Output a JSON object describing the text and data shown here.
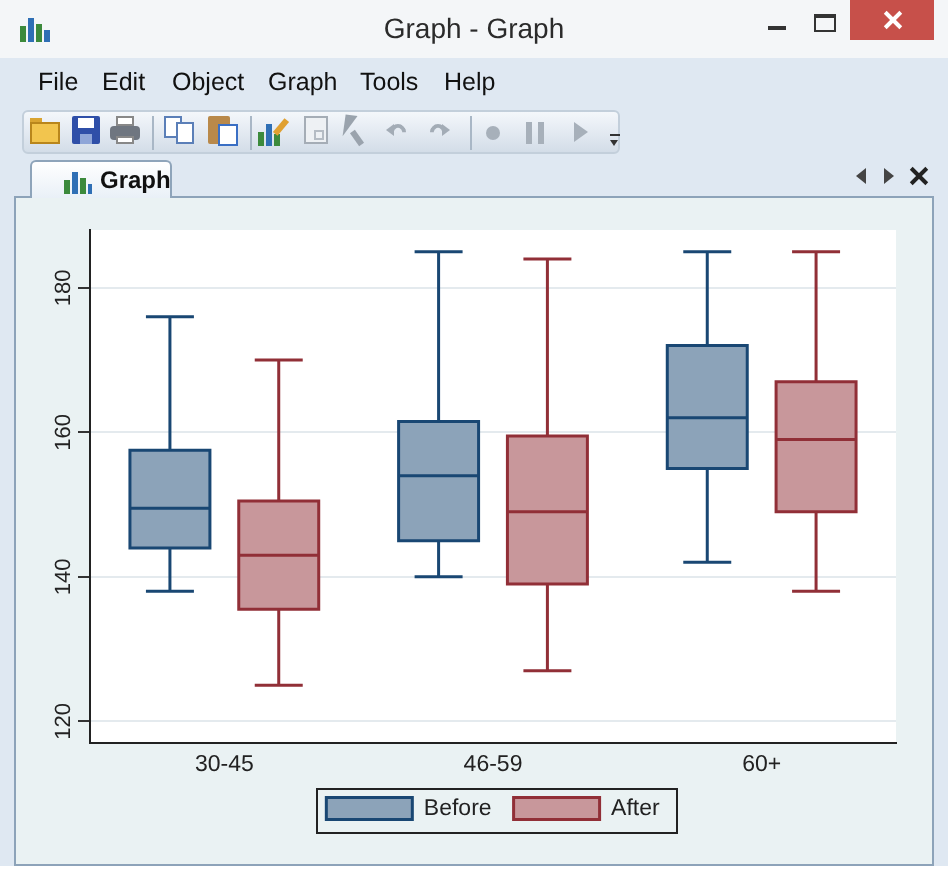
{
  "chart_data": {
    "type": "box",
    "categories": [
      "30-45",
      "46-59",
      "60+"
    ],
    "series": [
      {
        "name": "Before",
        "color": "#8ca3b9",
        "boxes": [
          {
            "low": 138,
            "q1": 144,
            "median": 149.5,
            "q3": 157.5,
            "high": 176
          },
          {
            "low": 140,
            "q1": 145,
            "median": 154,
            "q3": 161.5,
            "high": 185
          },
          {
            "low": 142,
            "q1": 155,
            "median": 162,
            "q3": 172,
            "high": 185
          }
        ]
      },
      {
        "name": "After",
        "color": "#c8979b",
        "boxes": [
          {
            "low": 125,
            "q1": 135.5,
            "median": 143,
            "q3": 150.5,
            "high": 170
          },
          {
            "low": 127,
            "q1": 139,
            "median": 149,
            "q3": 159.5,
            "high": 184
          },
          {
            "low": 138,
            "q1": 149,
            "median": 159,
            "q3": 167,
            "high": 185
          }
        ]
      }
    ],
    "ylim": [
      117,
      188
    ],
    "yticks": [
      120,
      140,
      160,
      180
    ],
    "grid": "y",
    "legend": "bottom",
    "annotations": [
      "Graph - Graph",
      "File",
      "Edit",
      "Object",
      "Graph",
      "Tools",
      "Help",
      "Graph"
    ]
  }
}
